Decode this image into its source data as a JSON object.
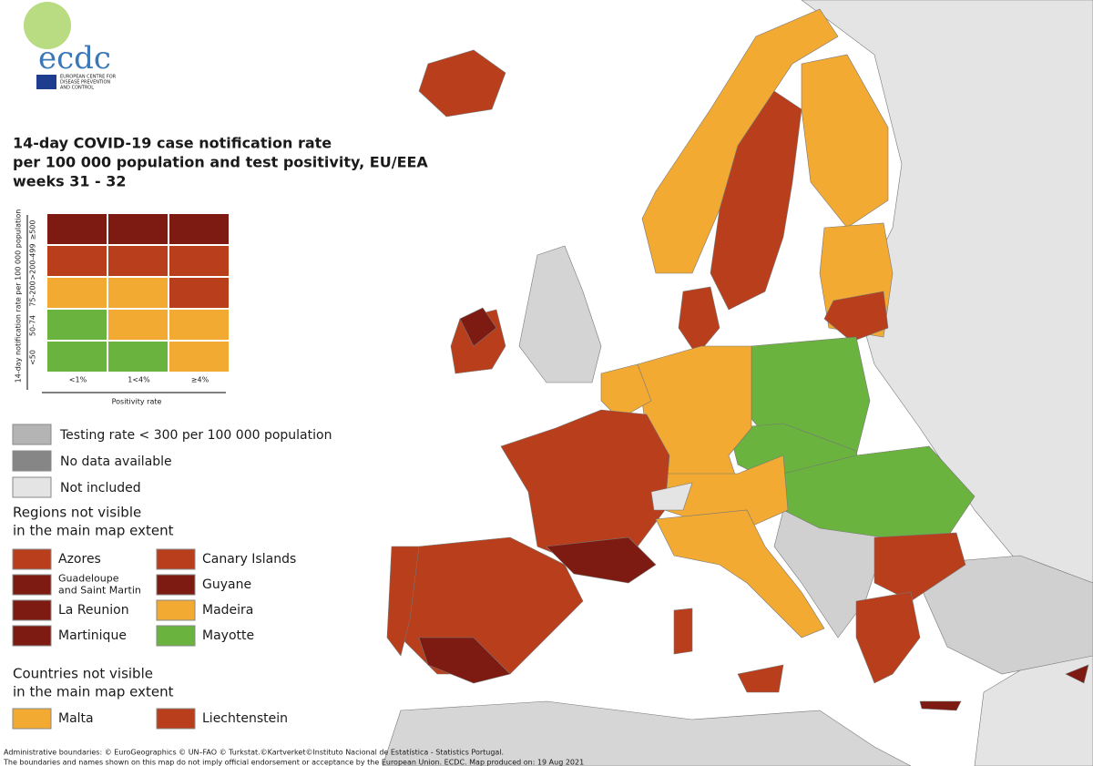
{
  "logo": {
    "name": "ecdc",
    "subtitle": [
      "EUROPEAN CENTRE FOR",
      "DISEASE PREVENTION",
      "AND CONTROL"
    ]
  },
  "title": [
    "14-day COVID-19 case notification rate",
    "per 100 000 population and test positivity, EU/EEA",
    "weeks 31 - 32"
  ],
  "matrix": {
    "y_axis_label": "14-day notification rate per 100 000 population",
    "row_labels": [
      "≥500",
      ">200-499",
      "75-200",
      "50-74",
      "<50"
    ],
    "column_labels": [
      "<1%",
      "1<4%",
      "≥4%"
    ],
    "x_axis_label": "Positivity rate",
    "colors": [
      [
        "#7d1b12",
        "#7d1b12",
        "#7d1b12"
      ],
      [
        "#b83e1c",
        "#b83e1c",
        "#b83e1c"
      ],
      [
        "#f2aa32",
        "#f2aa32",
        "#b83e1c"
      ],
      [
        "#6ab33e",
        "#f2aa32",
        "#f2aa32"
      ],
      [
        "#6ab33e",
        "#6ab33e",
        "#f2aa32"
      ]
    ]
  },
  "legend": [
    {
      "label": "Testing rate < 300 per 100 000 population",
      "color": "#b4b4b4"
    },
    {
      "label": "No data available",
      "color": "#868686"
    },
    {
      "label": "Not included",
      "color": "#e4e4e4"
    }
  ],
  "regions_not_visible": {
    "heading": [
      "Regions not visible",
      "in the main map extent"
    ],
    "items": [
      {
        "label": [
          "Azores"
        ],
        "color": "#b83e1c"
      },
      {
        "label": [
          "Canary Islands"
        ],
        "color": "#b83e1c"
      },
      {
        "label": [
          "Guadeloupe",
          "and Saint Martin"
        ],
        "color": "#7d1b12"
      },
      {
        "label": [
          "Guyane"
        ],
        "color": "#7d1b12"
      },
      {
        "label": [
          "La Reunion"
        ],
        "color": "#7d1b12"
      },
      {
        "label": [
          "Madeira"
        ],
        "color": "#f2aa32"
      },
      {
        "label": [
          "Martinique"
        ],
        "color": "#7d1b12"
      },
      {
        "label": [
          "Mayotte"
        ],
        "color": "#6ab33e"
      }
    ]
  },
  "countries_not_visible": {
    "heading": [
      "Countries not visible",
      "in the main map extent"
    ],
    "items": [
      {
        "label": [
          "Malta"
        ],
        "color": "#f2aa32"
      },
      {
        "label": [
          "Liechtenstein"
        ],
        "color": "#b83e1c"
      }
    ]
  },
  "footer": [
    "Administrative boundaries: © EuroGeographics © UN–FAO © Turkstat.©Kartverket©Instituto Nacional de Estatística - Statistics Portugal.",
    "The boundaries and names shown on this map do not imply official endorsement or acceptance by the European Union. ECDC. Map produced on: 19 Aug 2021"
  ]
}
